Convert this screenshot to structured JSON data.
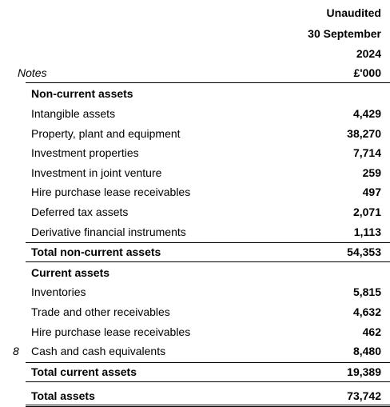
{
  "header": {
    "status": "Unaudited",
    "date": "30 September",
    "year": "2024",
    "notes_label": "Notes",
    "unit": "£'000"
  },
  "sections": {
    "non_current": {
      "title": "Non-current assets",
      "items": [
        {
          "label": "Intangible assets",
          "value": "4,429",
          "note": ""
        },
        {
          "label": "Property, plant and equipment",
          "value": "38,270",
          "note": ""
        },
        {
          "label": "Investment properties",
          "value": "7,714",
          "note": ""
        },
        {
          "label": "Investment in joint venture",
          "value": "259",
          "note": ""
        },
        {
          "label": "Hire purchase lease receivables",
          "value": "497",
          "note": ""
        },
        {
          "label": "Deferred tax assets",
          "value": "2,071",
          "note": ""
        },
        {
          "label": "Derivative financial instruments",
          "value": "1,113",
          "note": ""
        }
      ],
      "total_label": "Total non-current assets",
      "total_value": "54,353"
    },
    "current": {
      "title": "Current assets",
      "items": [
        {
          "label": "Inventories",
          "value": "5,815",
          "note": ""
        },
        {
          "label": "Trade and other receivables",
          "value": "4,632",
          "note": ""
        },
        {
          "label": "Hire purchase lease receivables",
          "value": "462",
          "note": ""
        },
        {
          "label": "Cash and cash equivalents",
          "value": "8,480",
          "note": "8"
        }
      ],
      "total_label": "Total current assets",
      "total_value": "19,389"
    },
    "total_assets": {
      "label": "Total assets",
      "value": "73,742"
    }
  }
}
